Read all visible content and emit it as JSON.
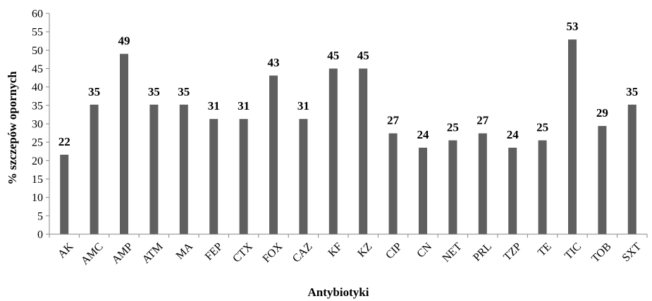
{
  "chart_data": {
    "type": "bar",
    "categories": [
      "AK",
      "AMC",
      "AMP",
      "ATM",
      "MA",
      "FEP",
      "CTX",
      "FOX",
      "CAZ",
      "KF",
      "KZ",
      "CIP",
      "CN",
      "NET",
      "PRL",
      "TZP",
      "TE",
      "TIC",
      "TOB",
      "SXT"
    ],
    "values": [
      21.6,
      35.2,
      49,
      35.2,
      35.2,
      31.3,
      31.3,
      43.1,
      31.3,
      45,
      45,
      27.4,
      23.5,
      25.5,
      27.4,
      23.5,
      25.5,
      52.9,
      29.4,
      35.2
    ],
    "data_labels": [
      "22",
      "35",
      "49",
      "35",
      "35",
      "31",
      "31",
      "43",
      "31",
      "45",
      "45",
      "27",
      "24",
      "25",
      "27",
      "24",
      "25",
      "53",
      "29",
      "35"
    ],
    "xlabel": "Antybiotyki",
    "ylabel": "% szczepów opornych",
    "ylim": [
      0,
      60
    ],
    "yticks": [
      0,
      5,
      10,
      15,
      20,
      25,
      30,
      35,
      40,
      45,
      50,
      55,
      60
    ],
    "ytick_labels": [
      "0",
      "5",
      "10",
      "15",
      "20",
      "25",
      "30",
      "35",
      "40",
      "45",
      "50",
      "55",
      "60"
    ],
    "grid": false,
    "bar_color": "#5f5f5f",
    "axis_color": "#868686"
  }
}
